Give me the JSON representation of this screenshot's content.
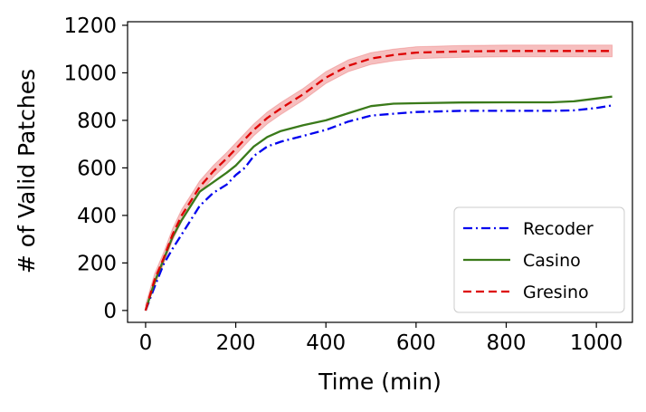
{
  "chart_data": {
    "type": "line",
    "title": "",
    "xlabel": "Time (min)",
    "ylabel": "# of Valid Patches",
    "xlim": [
      -40,
      1080
    ],
    "ylim": [
      -50,
      1215
    ],
    "xticks": [
      0,
      200,
      400,
      600,
      800,
      1000
    ],
    "yticks": [
      0,
      200,
      400,
      600,
      800,
      1000,
      1200
    ],
    "grid": false,
    "legend_position": "lower-right",
    "series": [
      {
        "name": "Recoder",
        "color": "#0000ee",
        "dash": "dashdot",
        "x": [
          0,
          20,
          40,
          60,
          80,
          100,
          120,
          150,
          180,
          200,
          220,
          240,
          270,
          300,
          350,
          400,
          450,
          500,
          550,
          600,
          700,
          800,
          900,
          950,
          1000,
          1035
        ],
        "y": [
          0,
          100,
          195,
          260,
          320,
          380,
          440,
          495,
          530,
          570,
          600,
          650,
          690,
          710,
          735,
          760,
          795,
          820,
          828,
          835,
          840,
          840,
          840,
          842,
          852,
          863
        ]
      },
      {
        "name": "Casino",
        "color": "#3a7a1a",
        "dash": "solid",
        "x": [
          0,
          20,
          40,
          60,
          80,
          100,
          120,
          150,
          180,
          200,
          220,
          240,
          270,
          300,
          350,
          400,
          450,
          500,
          550,
          600,
          700,
          800,
          900,
          950,
          1000,
          1035
        ],
        "y": [
          0,
          120,
          215,
          310,
          380,
          440,
          500,
          540,
          580,
          610,
          650,
          690,
          730,
          755,
          780,
          800,
          830,
          860,
          870,
          872,
          875,
          876,
          876,
          880,
          892,
          900
        ]
      },
      {
        "name": "Gresino",
        "color": "#dd0000",
        "dash": "dashed",
        "band": 25,
        "x": [
          0,
          20,
          40,
          60,
          80,
          100,
          120,
          150,
          180,
          200,
          220,
          240,
          270,
          300,
          350,
          400,
          450,
          500,
          550,
          600,
          700,
          800,
          900,
          950,
          1000,
          1035
        ],
        "y": [
          0,
          130,
          220,
          320,
          400,
          460,
          520,
          585,
          640,
          680,
          720,
          760,
          810,
          850,
          910,
          980,
          1030,
          1060,
          1075,
          1085,
          1090,
          1092,
          1092,
          1092,
          1092,
          1092
        ]
      }
    ]
  }
}
